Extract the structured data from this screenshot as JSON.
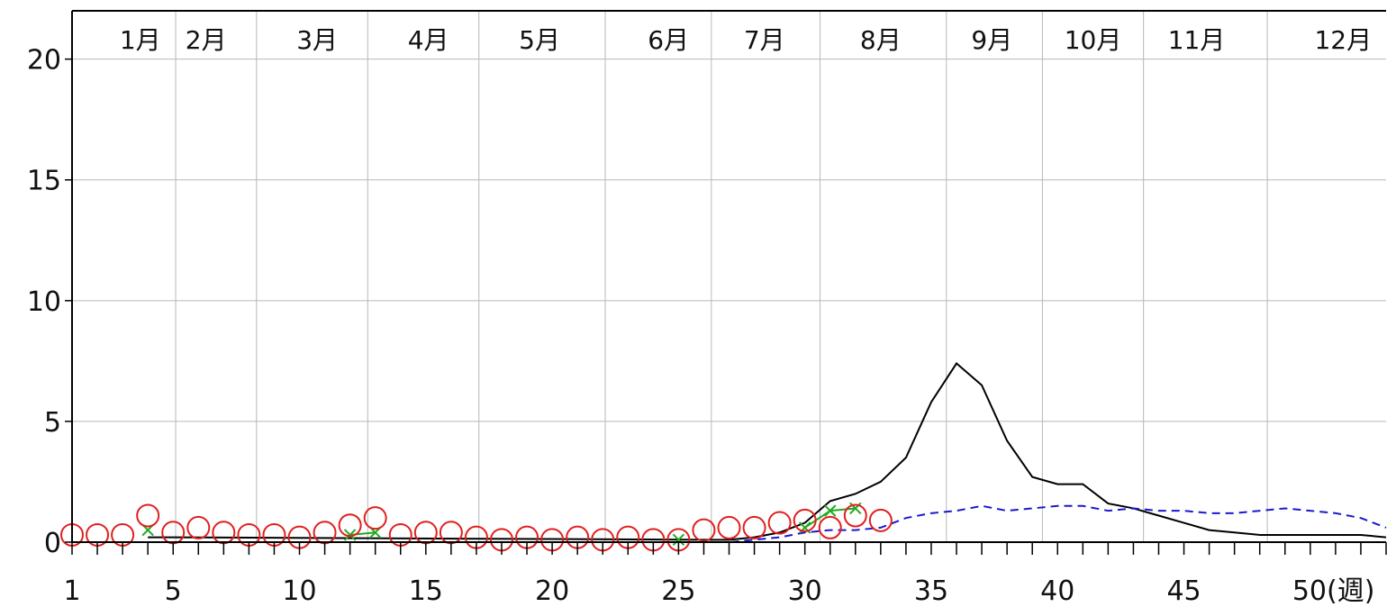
{
  "chart_data": {
    "type": "line",
    "x_label": "(週)",
    "x_range": [
      1,
      53
    ],
    "y_range": [
      0,
      22
    ],
    "grid": true,
    "y_ticks": [
      0,
      5,
      10,
      15,
      20
    ],
    "x_ticks": [
      1,
      5,
      10,
      15,
      20,
      25,
      30,
      35,
      40,
      45,
      50
    ],
    "x_tick_labels": [
      "1",
      "5",
      "10",
      "15",
      "20",
      "25",
      "30",
      "35",
      "40",
      "45",
      "50(週)"
    ],
    "months": [
      {
        "label": "1月",
        "week": 3.7
      },
      {
        "label": "2月",
        "week": 6.3
      },
      {
        "label": "3月",
        "week": 10.7
      },
      {
        "label": "4月",
        "week": 15.1
      },
      {
        "label": "5月",
        "week": 19.5
      },
      {
        "label": "6月",
        "week": 24.6
      },
      {
        "label": "7月",
        "week": 28.4
      },
      {
        "label": "8月",
        "week": 33.0
      },
      {
        "label": "9月",
        "week": 37.4
      },
      {
        "label": "10月",
        "week": 41.4
      },
      {
        "label": "11月",
        "week": 45.5
      },
      {
        "label": "12月",
        "week": 51.3
      }
    ],
    "month_boundaries": [
      5.1,
      8.3,
      12.7,
      17.1,
      22.1,
      26.3,
      30.6,
      35.6,
      39.4,
      43.4,
      48.3
    ],
    "series": [
      {
        "style": "solid-black",
        "color": "#000000",
        "points": [
          [
            4,
            0.2
          ],
          [
            5,
            0.2
          ],
          [
            26,
            0.1
          ],
          [
            27,
            0.1
          ],
          [
            28,
            0.2
          ],
          [
            29,
            0.4
          ],
          [
            30,
            0.8
          ],
          [
            31,
            1.7
          ],
          [
            32,
            2.0
          ],
          [
            33,
            2.5
          ],
          [
            34,
            3.5
          ],
          [
            35,
            5.8
          ],
          [
            36,
            7.4
          ],
          [
            37,
            6.5
          ],
          [
            38,
            4.2
          ],
          [
            39,
            2.7
          ],
          [
            40,
            2.4
          ],
          [
            41,
            2.4
          ],
          [
            42,
            1.6
          ],
          [
            43,
            1.4
          ],
          [
            44,
            1.1
          ],
          [
            45,
            0.8
          ],
          [
            46,
            0.5
          ],
          [
            47,
            0.4
          ],
          [
            48,
            0.3
          ],
          [
            49,
            0.3
          ],
          [
            50,
            0.3
          ],
          [
            51,
            0.3
          ],
          [
            52,
            0.3
          ],
          [
            53,
            0.2
          ]
        ]
      },
      {
        "style": "dashed-blue",
        "color": "#1a1acc",
        "points": [
          [
            26,
            0.0
          ],
          [
            27,
            0.0
          ],
          [
            28,
            0.1
          ],
          [
            29,
            0.2
          ],
          [
            30,
            0.4
          ],
          [
            31,
            0.5
          ],
          [
            32,
            0.5
          ],
          [
            33,
            0.6
          ],
          [
            34,
            1.0
          ],
          [
            35,
            1.2
          ],
          [
            36,
            1.3
          ],
          [
            37,
            1.5
          ],
          [
            38,
            1.3
          ],
          [
            39,
            1.4
          ],
          [
            40,
            1.5
          ],
          [
            41,
            1.5
          ],
          [
            42,
            1.3
          ],
          [
            43,
            1.4
          ],
          [
            44,
            1.3
          ],
          [
            45,
            1.3
          ],
          [
            46,
            1.2
          ],
          [
            47,
            1.2
          ],
          [
            48,
            1.3
          ],
          [
            49,
            1.4
          ],
          [
            50,
            1.3
          ],
          [
            51,
            1.2
          ],
          [
            52,
            1.0
          ],
          [
            53,
            0.6
          ]
        ]
      },
      {
        "style": "green-segments",
        "color": "#22aa22",
        "points": [
          [
            4,
            0.5
          ],
          [
            12,
            0.3
          ],
          [
            13,
            0.4
          ],
          [
            25,
            0.1
          ],
          [
            30,
            0.6
          ],
          [
            31,
            1.3
          ],
          [
            32,
            1.4
          ]
        ]
      },
      {
        "style": "red-circles",
        "color": "#e02020",
        "points": [
          [
            1,
            0.3
          ],
          [
            2,
            0.3
          ],
          [
            3,
            0.3
          ],
          [
            4,
            1.1
          ],
          [
            5,
            0.4
          ],
          [
            6,
            0.6
          ],
          [
            7,
            0.4
          ],
          [
            8,
            0.3
          ],
          [
            9,
            0.3
          ],
          [
            10,
            0.2
          ],
          [
            11,
            0.4
          ],
          [
            12,
            0.7
          ],
          [
            13,
            1.0
          ],
          [
            14,
            0.3
          ],
          [
            15,
            0.4
          ],
          [
            16,
            0.4
          ],
          [
            17,
            0.2
          ],
          [
            18,
            0.1
          ],
          [
            19,
            0.2
          ],
          [
            20,
            0.1
          ],
          [
            21,
            0.2
          ],
          [
            22,
            0.1
          ],
          [
            23,
            0.2
          ],
          [
            24,
            0.1
          ],
          [
            25,
            0.1
          ],
          [
            26,
            0.5
          ],
          [
            27,
            0.6
          ],
          [
            28,
            0.6
          ],
          [
            29,
            0.8
          ],
          [
            30,
            0.9
          ],
          [
            31,
            0.6
          ],
          [
            32,
            1.1
          ],
          [
            33,
            0.9
          ]
        ]
      }
    ]
  }
}
